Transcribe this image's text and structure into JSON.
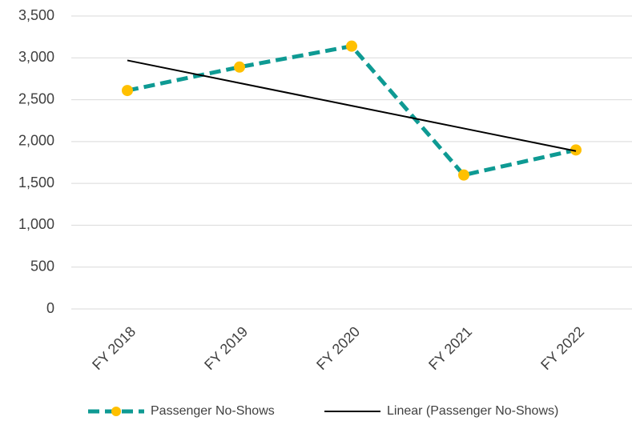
{
  "chart_data": {
    "type": "line",
    "categories": [
      "FY 2018",
      "FY 2019",
      "FY 2020",
      "FY 2021",
      "FY 2022"
    ],
    "series": [
      {
        "name": "Passenger No-Shows",
        "color": "#0e9a93",
        "marker_color": "#ffc000",
        "dashed": true,
        "values": [
          2610,
          2890,
          3140,
          1600,
          1900
        ]
      },
      {
        "name": "Linear (Passenger No-Shows)",
        "color": "#000000",
        "dashed": false,
        "values": [
          2970,
          2699,
          2428,
          2157,
          1886
        ]
      }
    ],
    "ylim": [
      0,
      3500
    ],
    "yticks": [
      0,
      500,
      {
        "value": 1000,
        "label": "1,000"
      },
      {
        "value": 1500,
        "label": "1,500"
      },
      {
        "value": 2000,
        "label": "2,000"
      },
      {
        "value": 2500,
        "label": "2,500"
      },
      {
        "value": 3000,
        "label": "3,000"
      },
      {
        "value": 3500,
        "label": "3,500"
      }
    ],
    "grid": true,
    "legend": "bottom"
  }
}
